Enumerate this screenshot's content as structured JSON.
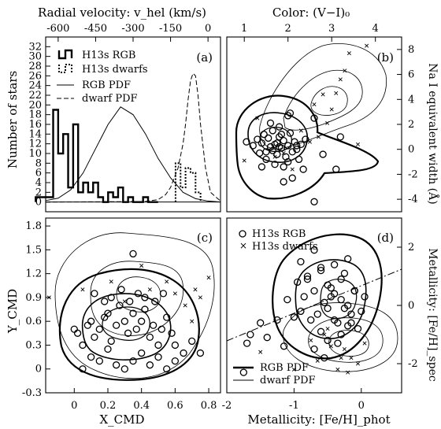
{
  "title_top_left": "Radial velocity: v_hel (km/s)",
  "title_top_right": "Color: (V−I)₀",
  "xlabel_bottom_left": "X_CMD",
  "xlabel_bottom_right": "Metallicity: [Fe/H]_phot",
  "ylabel_left_top": "Number of stars",
  "ylabel_left_bottom": "Y_CMD",
  "ylabel_right_top": "Na I equivalent width (Å)",
  "ylabel_right_bottom": "Metallicity: [Fe/H]_spec",
  "panels": {
    "a": "(a)",
    "b": "(b)",
    "c": "(c)",
    "d": "(d)"
  },
  "legend_a": [
    {
      "label": "H13s RGB",
      "style": "thick-step"
    },
    {
      "label": "H13s dwarfs",
      "style": "dotted-step"
    },
    {
      "label": "RGB PDF",
      "style": "thin-solid"
    },
    {
      "label": "dwarf PDF",
      "style": "dashed"
    }
  ],
  "legend_d_top": [
    {
      "label": "H13s RGB",
      "marker": "circle"
    },
    {
      "label": "H13s dwarfs",
      "marker": "x"
    }
  ],
  "legend_d_bottom": [
    {
      "label": "RGB PDF",
      "style": "thick"
    },
    {
      "label": "dwarf PDF",
      "style": "thin"
    }
  ],
  "chart_data": [
    {
      "type": "bar",
      "panel": "a",
      "x_axis_top": {
        "label": "Radial velocity: v_hel (km/s)",
        "range": [
          -650,
          50
        ],
        "ticks": [
          "-600",
          "-450",
          "-300",
          "-150",
          "0"
        ]
      },
      "y_axis": {
        "label": "Number of stars",
        "range": [
          -2,
          34
        ],
        "ticks": [
          "0",
          "2",
          "4",
          "6",
          "8",
          "10",
          "12",
          "14",
          "16",
          "18",
          "20",
          "22",
          "24",
          "26",
          "28",
          "30",
          "32"
        ]
      },
      "series": [
        {
          "name": "H13s RGB",
          "bin_edges": [
            -690,
            -620,
            -600,
            -580,
            -560,
            -540,
            -520,
            -500,
            -480,
            -460,
            -440,
            -420,
            -400,
            -380,
            -360,
            -340,
            -320,
            -300,
            -280,
            -260,
            -240,
            -220,
            -200
          ],
          "values": [
            1,
            19,
            10,
            14,
            3,
            16,
            2,
            4,
            2,
            4,
            1,
            0,
            2,
            1,
            3,
            0,
            1,
            0,
            0,
            1,
            0,
            0
          ]
        },
        {
          "name": "H13s dwarfs",
          "bin_edges": [
            -130,
            -110,
            -90,
            -70,
            -50,
            -30
          ],
          "values": [
            8,
            3,
            7,
            6,
            2
          ]
        },
        {
          "name": "RGB PDF",
          "x": [
            -650,
            -600,
            -550,
            -500,
            -450,
            -400,
            -350,
            -300,
            -250,
            -200,
            -150,
            -100,
            -50,
            0,
            50
          ],
          "y": [
            0.3,
            0.8,
            2.5,
            6,
            11,
            16,
            19.6,
            18,
            14,
            9,
            5,
            2,
            0.7,
            0.2,
            0
          ]
        },
        {
          "name": "dwarf PDF",
          "x": [
            -650,
            -250,
            -200,
            -170,
            -150,
            -120,
            -100,
            -90,
            -80,
            -70,
            -60,
            -50,
            -40,
            -30,
            -10,
            10,
            50
          ],
          "y": [
            0,
            0.1,
            0.5,
            1.5,
            3,
            7,
            12,
            16,
            21,
            25,
            26.5,
            26,
            22,
            16,
            7,
            2,
            0.2
          ]
        }
      ],
      "grid": false
    },
    {
      "type": "scatter",
      "panel": "b",
      "x_axis_top": {
        "label": "Color: (V−I)₀",
        "range": [
          0.6,
          4.6
        ],
        "ticks": [
          "1",
          "2",
          "3",
          "4"
        ]
      },
      "y_axis_right": {
        "label": "Na I equivalent width (Å)",
        "range": [
          -5,
          9
        ],
        "ticks": [
          "-4",
          "-2",
          "0",
          "2",
          "4",
          "6",
          "8"
        ]
      },
      "series": [
        {
          "name": "H13s RGB",
          "marker": "circle",
          "x": [
            1.05,
            1.2,
            1.3,
            1.35,
            1.4,
            1.45,
            1.5,
            1.55,
            1.6,
            1.65,
            1.7,
            1.75,
            1.8,
            1.85,
            1.9,
            1.95,
            2.0,
            2.05,
            2.1,
            2.15,
            2.2,
            2.25,
            2.3,
            1.6,
            1.7,
            1.8,
            1.9,
            2.0,
            2.1,
            2.4,
            2.6,
            2.8,
            3.1,
            3.2,
            1.5,
            1.65,
            1.75,
            1.85,
            2.0,
            2.2,
            1.4,
            1.9,
            2.05,
            2.35,
            2.6,
            1.8
          ],
          "y": [
            0.6,
            0.3,
            0.8,
            -0.3,
            0.5,
            1.2,
            -0.2,
            0.9,
            0.2,
            1.5,
            0.4,
            -0.4,
            1.0,
            0.1,
            0.7,
            -0.6,
            0.3,
            1.3,
            -0.2,
            0.6,
            0.0,
            -0.8,
            0.4,
            2.1,
            -1.2,
            1.8,
            -1.4,
            2.7,
            -2.3,
            0.8,
            2.5,
            -0.4,
            -1.6,
            1.0,
            -0.8,
            -0.1,
            0.5,
            1.2,
            -1.0,
            0.3,
            -1.4,
            -2.6,
            2.9,
            -1.6,
            -4.2,
            0.2
          ]
        },
        {
          "name": "H13s dwarfs",
          "marker": "x",
          "x": [
            1.0,
            1.3,
            1.7,
            2.1,
            2.3,
            2.6,
            2.8,
            2.9,
            3.0,
            3.1,
            3.2,
            3.3,
            3.4,
            2.7,
            2.5,
            3.6,
            3.8,
            1.9
          ],
          "y": [
            -0.9,
            2.5,
            -0.6,
            -1.6,
            1.5,
            3.6,
            4.4,
            2.1,
            3.2,
            4.5,
            5.6,
            6.3,
            7.7,
            1.0,
            0.6,
            0.4,
            8.3,
            -0.3
          ]
        }
      ]
    },
    {
      "type": "scatter",
      "panel": "c",
      "x_axis": {
        "label": "X_CMD",
        "range": [
          -0.17,
          0.87
        ],
        "ticks": [
          "0",
          "0.2",
          "0.4",
          "0.6",
          "0.8"
        ]
      },
      "y_axis": {
        "label": "Y_CMD",
        "range": [
          -0.3,
          1.9
        ],
        "ticks": [
          "-0.3",
          "0",
          "0.3",
          "0.6",
          "0.9",
          "1.2",
          "1.5",
          "1.8"
        ]
      },
      "series": [
        {
          "name": "H13s RGB",
          "marker": "circle",
          "x": [
            0.0,
            0.02,
            0.05,
            0.08,
            0.1,
            0.12,
            0.15,
            0.18,
            0.2,
            0.22,
            0.25,
            0.27,
            0.3,
            0.32,
            0.35,
            0.37,
            0.4,
            0.42,
            0.45,
            0.47,
            0.5,
            0.52,
            0.55,
            0.58,
            0.6,
            0.65,
            0.7,
            0.75,
            0.05,
            0.1,
            0.15,
            0.2,
            0.25,
            0.3,
            0.35,
            0.4,
            0.45,
            0.5,
            0.55,
            0.6,
            0.12,
            0.18,
            0.22,
            0.28,
            0.33,
            0.38,
            0.42,
            0.48,
            0.53,
            0.35
          ],
          "y": [
            0.5,
            0.45,
            0.3,
            0.55,
            0.6,
            0.4,
            0.5,
            0.65,
            0.7,
            0.35,
            0.55,
            0.8,
            0.6,
            0.45,
            0.7,
            0.5,
            0.6,
            0.75,
            0.4,
            0.55,
            0.3,
            0.5,
            0.65,
            0.45,
            0.3,
            0.2,
            0.35,
            0.2,
            0.0,
            0.15,
            0.1,
            0.25,
            0.05,
            0.0,
            0.1,
            0.2,
            0.05,
            0.15,
            0.0,
            0.1,
            0.95,
            0.85,
            0.9,
            1.0,
            0.85,
            0.95,
            0.9,
            0.85,
            0.95,
            1.45
          ]
        },
        {
          "name": "H13s dwarfs",
          "marker": "x",
          "x": [
            -0.15,
            0.05,
            0.22,
            0.4,
            0.45,
            0.6,
            0.66,
            0.7,
            0.72,
            0.75,
            0.8,
            0.55,
            0.3
          ],
          "y": [
            0.9,
            1.0,
            1.1,
            1.3,
            1.0,
            0.95,
            0.8,
            0.6,
            1.0,
            0.9,
            1.15,
            1.1,
            0.85
          ]
        }
      ]
    },
    {
      "type": "scatter",
      "panel": "d",
      "x_axis": {
        "label": "Metallicity: [Fe/H]_phot",
        "range": [
          -2.0,
          0.6
        ],
        "ticks": [
          "-2",
          "-1",
          "0"
        ]
      },
      "y_axis_right": {
        "label": "Metallicity: [Fe/H]_spec",
        "range": [
          -3.0,
          3.0
        ],
        "ticks": [
          "-2",
          "0",
          "2"
        ]
      },
      "series": [
        {
          "name": "H13s RGB",
          "marker": "circle",
          "x": [
            -1.75,
            -1.7,
            -1.65,
            -1.5,
            -1.4,
            -1.25,
            -1.15,
            -1.1,
            -1.0,
            -0.95,
            -0.9,
            -0.85,
            -0.8,
            -0.75,
            -0.7,
            -0.65,
            -0.6,
            -0.55,
            -0.5,
            -0.45,
            -0.4,
            -0.35,
            -0.3,
            -0.25,
            -0.2,
            -0.15,
            -0.1,
            -0.05,
            0.0,
            0.05,
            -0.9,
            -0.8,
            -0.7,
            -0.6,
            -0.5,
            -0.4,
            -0.3,
            -0.2,
            -0.1,
            -0.6,
            -0.5,
            -0.4,
            -0.3,
            -0.2,
            -0.7,
            -0.55,
            -0.35,
            -0.15,
            -0.45,
            -0.25
          ],
          "y": [
            -2.3,
            -1.3,
            -1.0,
            -0.6,
            -1.1,
            -0.5,
            -1.4,
            0.2,
            -0.4,
            0.8,
            -0.2,
            0.3,
            1.0,
            -0.5,
            0.5,
            -0.3,
            1.3,
            0.1,
            -0.1,
            0.6,
            0.4,
            -0.6,
            0.2,
            1.1,
            0.0,
            -0.3,
            0.5,
            -0.8,
            -0.2,
            0.3,
            1.5,
            0.9,
            1.9,
            1.2,
            0.7,
            1.4,
            0.9,
            1.6,
            0.5,
            -0.9,
            -1.2,
            -0.5,
            -1.0,
            -0.7,
            -1.5,
            -1.8,
            -1.3,
            -0.6,
            0.3,
            -0.1
          ]
        },
        {
          "name": "H13s dwarfs",
          "marker": "x",
          "x": [
            -1.5,
            -1.0,
            -0.75,
            -0.65,
            -0.55,
            -0.45,
            -0.35,
            -0.25,
            -0.15,
            -0.05,
            0.05,
            -0.5,
            -0.3,
            -0.2
          ],
          "y": [
            -1.6,
            -2.2,
            -1.2,
            -1.9,
            -1.0,
            -1.4,
            -2.2,
            -1.5,
            -1.8,
            -2.0,
            -1.3,
            -0.8,
            -1.8,
            -2.3
          ]
        }
      ]
    }
  ]
}
